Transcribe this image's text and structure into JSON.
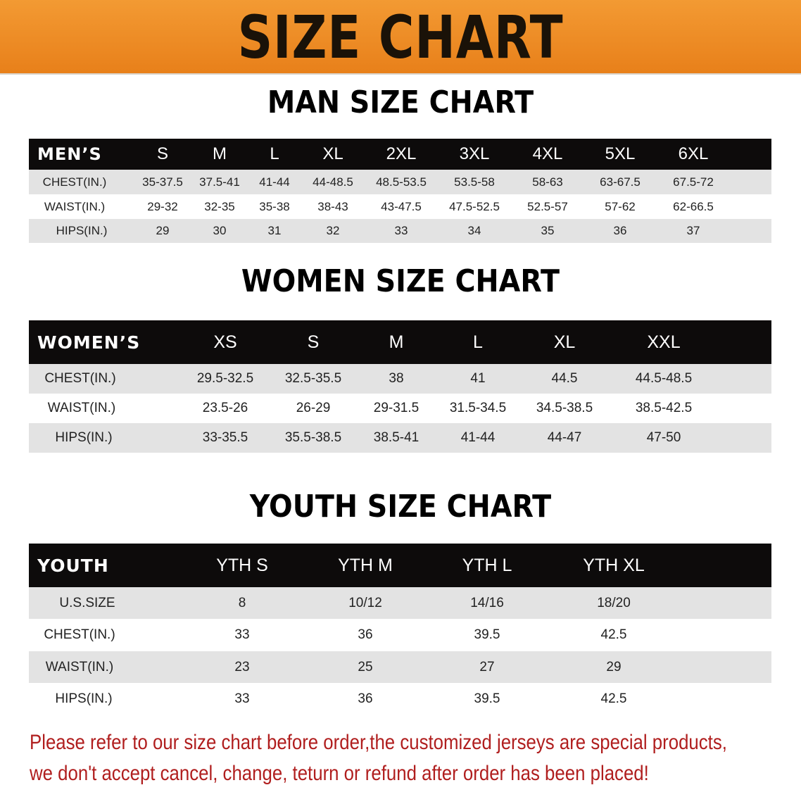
{
  "banner": {
    "title": "SIZE CHART",
    "color": "#ee8a22"
  },
  "men": {
    "title": "MAN SIZE CHART",
    "header": [
      "MEN’S",
      "S",
      "M",
      "L",
      "XL",
      "2XL",
      "3XL",
      "4XL",
      "5XL",
      "6XL"
    ],
    "rows": [
      [
        "CHEST(IN.)",
        "35-37.5",
        "37.5-41",
        "41-44",
        "44-48.5",
        "48.5-53.5",
        "53.5-58",
        "58-63",
        "63-67.5",
        "67.5-72"
      ],
      [
        "WAIST(IN.)",
        "29-32",
        "32-35",
        "35-38",
        "38-43",
        "43-47.5",
        "47.5-52.5",
        "52.5-57",
        "57-62",
        "62-66.5"
      ],
      [
        "HIPS(IN.)",
        "29",
        "30",
        "31",
        "32",
        "33",
        "34",
        "35",
        "36",
        "37"
      ]
    ]
  },
  "women": {
    "title": "WOMEN SIZE CHART",
    "header": [
      "WOMEN’S",
      "XS",
      "S",
      "M",
      "L",
      "XL",
      "XXL"
    ],
    "rows": [
      [
        "CHEST(IN.)",
        "29.5-32.5",
        "32.5-35.5",
        "38",
        "41",
        "44.5",
        "44.5-48.5"
      ],
      [
        "WAIST(IN.)",
        "23.5-26",
        "26-29",
        "29-31.5",
        "31.5-34.5",
        "34.5-38.5",
        "38.5-42.5"
      ],
      [
        "HIPS(IN.)",
        "33-35.5",
        "35.5-38.5",
        "38.5-41",
        "41-44",
        "44-47",
        "47-50"
      ]
    ]
  },
  "youth": {
    "title": "YOUTH SIZE CHART",
    "header": [
      "YOUTH",
      "YTH S",
      "YTH M",
      "YTH L",
      "YTH XL"
    ],
    "rows": [
      [
        "U.S.SIZE",
        "8",
        "10/12",
        "14/16",
        "18/20"
      ],
      [
        "CHEST(IN.)",
        "33",
        "36",
        "39.5",
        "42.5"
      ],
      [
        "WAIST(IN.)",
        "23",
        "25",
        "27",
        "29"
      ],
      [
        "HIPS(IN.)",
        "33",
        "36",
        "39.5",
        "42.5"
      ]
    ]
  },
  "notice": {
    "line1": "Please refer to our size chart before order,the customized jerseys are special products,",
    "line2": "we don't accept cancel, change, teturn or refund after order has been placed!",
    "color": "#b01e1e"
  }
}
